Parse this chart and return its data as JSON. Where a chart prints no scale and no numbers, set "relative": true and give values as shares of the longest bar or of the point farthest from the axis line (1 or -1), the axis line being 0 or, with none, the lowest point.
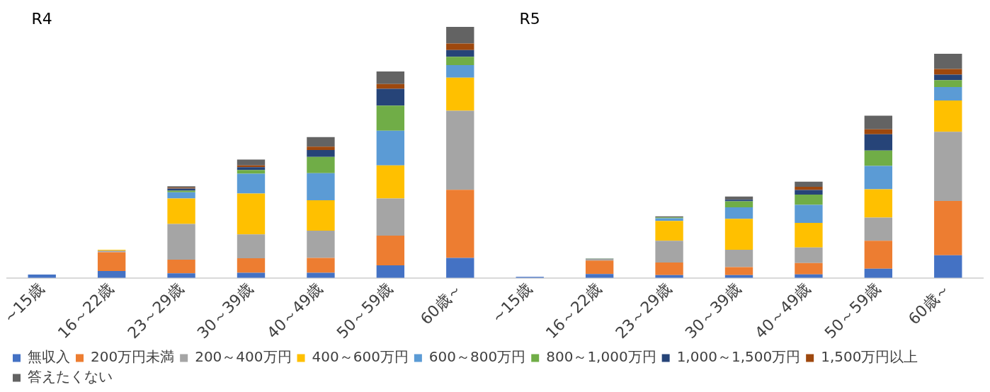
{
  "chart_data": {
    "type": "bar",
    "stacked": true,
    "relative": true,
    "legend": "bottom",
    "grid": false,
    "annotations": [
      "R4",
      "R5"
    ],
    "categories": [
      "~15歳",
      "16～22歳",
      "23～29歳",
      "30～39歳",
      "40～49歳",
      "50～59歳",
      "60歳～",
      "~15歳",
      "16～22歳",
      "23～29歳",
      "30～39歳",
      "40～49歳",
      "50～59歳",
      "60歳～"
    ],
    "series": [
      {
        "name": "無収入",
        "color": "#4472c4",
        "values": [
          0.013,
          0.027,
          0.018,
          0.02,
          0.02,
          0.05,
          0.079,
          0.004,
          0.015,
          0.011,
          0.011,
          0.014,
          0.036,
          0.09
        ]
      },
      {
        "name": "200万円未満",
        "color": "#ed7d31",
        "values": [
          0,
          0.075,
          0.054,
          0.058,
          0.059,
          0.118,
          0.272,
          0,
          0.054,
          0.05,
          0.032,
          0.045,
          0.112,
          0.216
        ]
      },
      {
        "name": "200～400万円",
        "color": "#a5a5a5",
        "values": [
          0,
          0.006,
          0.143,
          0.095,
          0.109,
          0.148,
          0.315,
          0,
          0.006,
          0.087,
          0.069,
          0.062,
          0.092,
          0.276
        ]
      },
      {
        "name": "400～600万円",
        "color": "#ffc000",
        "values": [
          0,
          0.004,
          0.101,
          0.163,
          0.121,
          0.132,
          0.132,
          0,
          0.001,
          0.079,
          0.123,
          0.098,
          0.113,
          0.125
        ]
      },
      {
        "name": "600～800万円",
        "color": "#5b9bd5",
        "values": [
          0,
          null,
          0.025,
          0.079,
          0.108,
          0.138,
          0.05,
          0,
          0.002,
          0.01,
          0.046,
          0.072,
          0.093,
          0.053
        ]
      },
      {
        "name": "800～1,000万円",
        "color": "#70ad47",
        "values": [
          0,
          0,
          0.006,
          0.015,
          0.065,
          0.1,
          0.033,
          0,
          0,
          0.004,
          0.024,
          0.041,
          0.061,
          0.028
        ]
      },
      {
        "name": "1,000～1,500万円",
        "color": "#264478",
        "values": [
          0,
          0,
          0.009,
          0.011,
          0.027,
          0.067,
          0.027,
          0,
          0,
          null,
          0.006,
          0.018,
          0.065,
          0.022
        ]
      },
      {
        "name": "1,500万円以上",
        "color": "#9e480e",
        "values": [
          0,
          0,
          0.003,
          0.007,
          0.014,
          0.019,
          0.026,
          0,
          0,
          0,
          null,
          0.013,
          0.02,
          0.022
        ]
      },
      {
        "name": "答えたくない",
        "color": "#636363",
        "values": [
          0,
          0,
          0.006,
          0.023,
          0.038,
          0.05,
          0.066,
          0,
          0,
          0.004,
          0.013,
          0.02,
          0.054,
          0.061
        ]
      }
    ]
  }
}
